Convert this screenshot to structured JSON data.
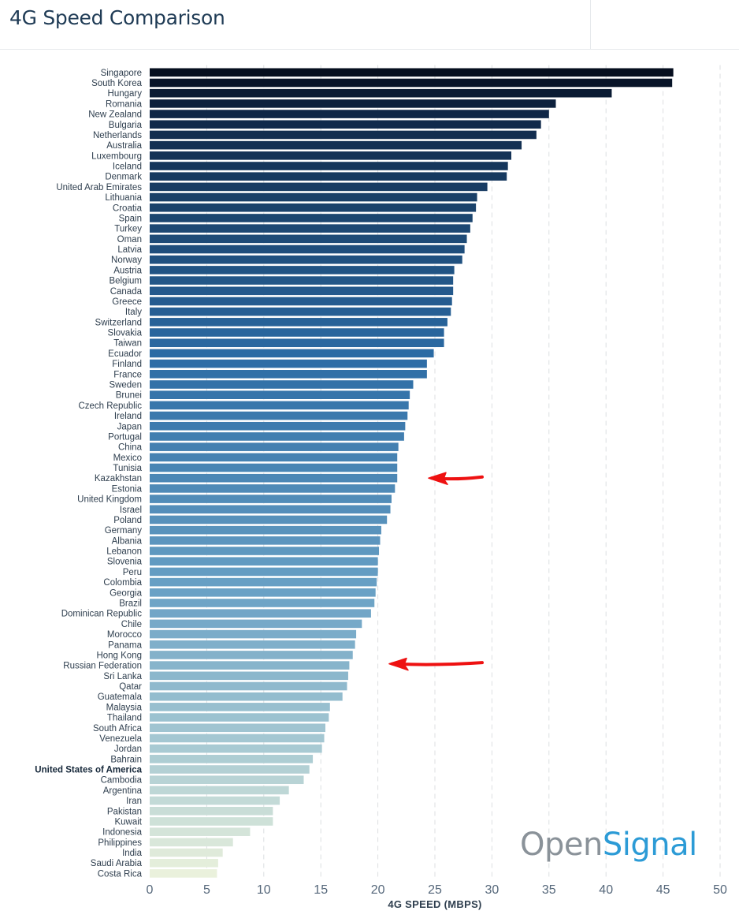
{
  "header": {
    "title": "4G Speed Comparison"
  },
  "brand": {
    "part1": "Open",
    "part2": "Signal"
  },
  "colors": {
    "bar_dark": "#050e1e",
    "bar_light": "#eaf1dc",
    "annotation_arrow": "#ee1111"
  },
  "annotations": [
    {
      "type": "red-arrow",
      "points_to": "Kazakhstan"
    },
    {
      "type": "red-arrow",
      "points_to": "Russian Federation"
    }
  ],
  "chart_data": {
    "type": "bar",
    "orientation": "horizontal",
    "title": "4G Speed Comparison",
    "xlabel": "4G SPEED (MBPS)",
    "ylabel": "",
    "xlim": [
      0,
      50
    ],
    "xticks": [
      0,
      5,
      10,
      15,
      20,
      25,
      30,
      35,
      40,
      45,
      50
    ],
    "grid": "vertical dashed",
    "bold_category": "United States of America",
    "categories": [
      "Singapore",
      "South Korea",
      "Hungary",
      "Romania",
      "New Zealand",
      "Bulgaria",
      "Netherlands",
      "Australia",
      "Luxembourg",
      "Iceland",
      "Denmark",
      "United Arab Emirates",
      "Lithuania",
      "Croatia",
      "Spain",
      "Turkey",
      "Oman",
      "Latvia",
      "Norway",
      "Austria",
      "Belgium",
      "Canada",
      "Greece",
      "Italy",
      "Switzerland",
      "Slovakia",
      "Taiwan",
      "Ecuador",
      "Finland",
      "France",
      "Sweden",
      "Brunei",
      "Czech Republic",
      "Ireland",
      "Japan",
      "Portugal",
      "China",
      "Mexico",
      "Tunisia",
      "Kazakhstan",
      "Estonia",
      "United Kingdom",
      "Israel",
      "Poland",
      "Germany",
      "Albania",
      "Lebanon",
      "Slovenia",
      "Peru",
      "Colombia",
      "Georgia",
      "Brazil",
      "Dominican Republic",
      "Chile",
      "Morocco",
      "Panama",
      "Hong Kong",
      "Russian Federation",
      "Sri Lanka",
      "Qatar",
      "Guatemala",
      "Malaysia",
      "Thailand",
      "South Africa",
      "Venezuela",
      "Jordan",
      "Bahrain",
      "United States of America",
      "Cambodia",
      "Argentina",
      "Iran",
      "Pakistan",
      "Kuwait",
      "Indonesia",
      "Philippines",
      "India",
      "Saudi Arabia",
      "Costa Rica"
    ],
    "values": [
      45.9,
      45.8,
      40.5,
      35.6,
      35.0,
      34.3,
      33.9,
      32.6,
      31.7,
      31.4,
      31.3,
      29.6,
      28.7,
      28.6,
      28.3,
      28.1,
      27.8,
      27.6,
      27.4,
      26.7,
      26.6,
      26.6,
      26.5,
      26.4,
      26.1,
      25.8,
      25.8,
      24.9,
      24.3,
      24.3,
      23.1,
      22.8,
      22.7,
      22.6,
      22.4,
      22.3,
      21.8,
      21.7,
      21.7,
      21.7,
      21.5,
      21.2,
      21.1,
      20.8,
      20.3,
      20.2,
      20.1,
      20.0,
      20.0,
      19.9,
      19.8,
      19.7,
      19.4,
      18.6,
      18.1,
      18.0,
      17.8,
      17.5,
      17.4,
      17.3,
      16.9,
      15.8,
      15.7,
      15.4,
      15.3,
      15.1,
      14.3,
      14.0,
      13.5,
      12.2,
      11.4,
      10.8,
      10.8,
      8.8,
      7.3,
      6.4,
      6.0,
      5.9
    ]
  }
}
